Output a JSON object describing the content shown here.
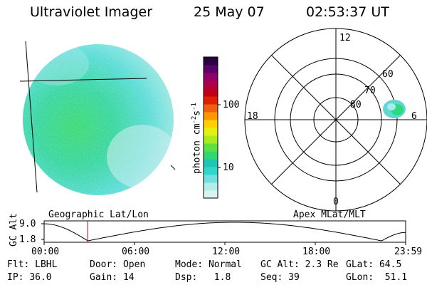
{
  "header": {
    "instrument": "Ultraviolet Imager",
    "date": "25 May 07",
    "time": "02:53:37 UT"
  },
  "colorbar": {
    "unit": "photon cm",
    "unit_sup1": "-2",
    "unit_mid": "s",
    "unit_sup2": "-1",
    "ticks": [
      "100",
      "10"
    ],
    "colors": [
      "#d8f4f2",
      "#b4ece8",
      "#6fe0de",
      "#2fd6cc",
      "#1ec8b0",
      "#30d870",
      "#60e040",
      "#a8ec20",
      "#e4f010",
      "#ffd000",
      "#ff9800",
      "#f06010",
      "#e02000",
      "#c00018",
      "#b0004a",
      "#90006a",
      "#5a006a",
      "#2a0040"
    ]
  },
  "polar": {
    "mlt_labels": [
      "12",
      "18",
      "6",
      "0"
    ],
    "mlat_labels": [
      "60",
      "70",
      "80"
    ]
  },
  "geo_label": "Geographic Lat/Lon",
  "apex_label": "Apex MLat/MLT",
  "orbit": {
    "axis_label": "GC Alt",
    "y_ticks": [
      "9.0",
      "1.8"
    ],
    "x_ticks": [
      "00:00",
      "06:00",
      "12:00",
      "18:00",
      "23:59"
    ],
    "current_time_hours": 2.894,
    "marker_color": "#cc0000"
  },
  "status": {
    "row1": [
      {
        "label": "Flt:",
        "value": "LBHL"
      },
      {
        "label": "Door:",
        "value": "Open"
      },
      {
        "label": "Mode:",
        "value": "Normal"
      },
      {
        "label": "GC Alt:",
        "value": "2.3 Re"
      },
      {
        "label": "GLat:",
        "value": "64.5"
      }
    ],
    "row2": [
      {
        "label": "IP:",
        "value": "36.0"
      },
      {
        "label": "Gain:",
        "value": "14"
      },
      {
        "label": "Dsp:",
        "value": "1.8"
      },
      {
        "label": "Seq:",
        "value": "39"
      },
      {
        "label": "GLon:",
        "value": "51.1"
      }
    ]
  }
}
